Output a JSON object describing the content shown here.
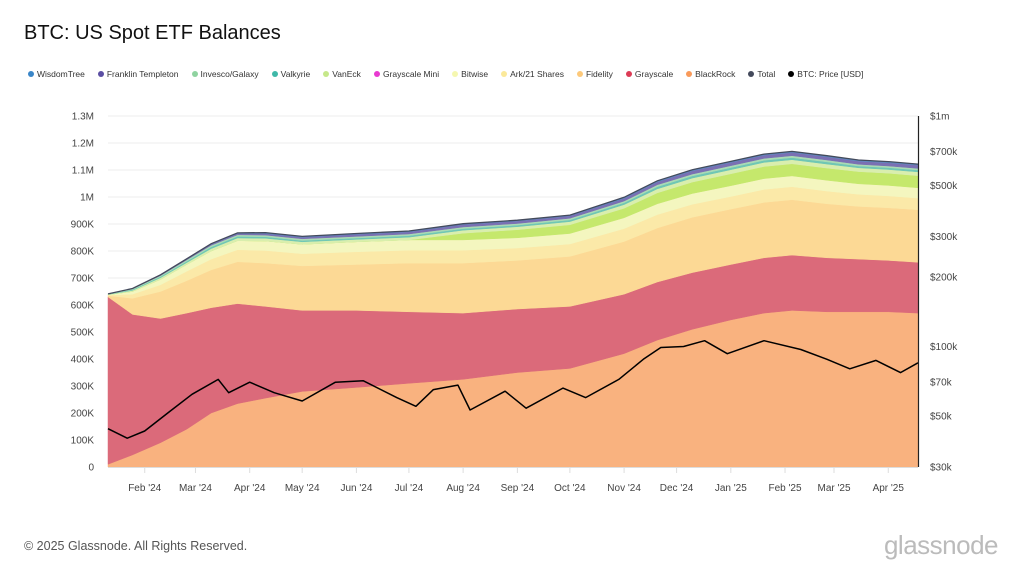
{
  "chart_data": {
    "type": "area",
    "title": "BTC: US Spot ETF Balances",
    "stacked": true,
    "x_range": [
      "2024-01-11",
      "2025-04-18"
    ],
    "x_tick_labels": [
      "Feb '24",
      "Mar '24",
      "Apr '24",
      "May '24",
      "Jun '24",
      "Jul '24",
      "Aug '24",
      "Sep '24",
      "Oct '24",
      "Nov '24",
      "Dec '24",
      "Jan '25",
      "Feb '25",
      "Mar '25",
      "Apr '25"
    ],
    "x_tick_dates": [
      "2024-02-01",
      "2024-03-01",
      "2024-04-01",
      "2024-05-01",
      "2024-06-01",
      "2024-07-01",
      "2024-08-01",
      "2024-09-01",
      "2024-10-01",
      "2024-11-01",
      "2024-12-01",
      "2025-01-01",
      "2025-02-01",
      "2025-03-01",
      "2025-04-01"
    ],
    "y_left": {
      "min": 0,
      "max": 1300000,
      "ticks": [
        0,
        100000,
        200000,
        300000,
        400000,
        500000,
        600000,
        700000,
        800000,
        900000,
        1000000,
        1100000,
        1200000,
        1300000
      ],
      "tick_labels": [
        "0",
        "100K",
        "200K",
        "300K",
        "400K",
        "500K",
        "600K",
        "700K",
        "800K",
        "900K",
        "1M",
        "1.1M",
        "1.2M",
        "1.3M"
      ]
    },
    "y_right": {
      "scale": "log",
      "min": 30000,
      "max": 1000000,
      "ticks": [
        30000,
        50000,
        70000,
        100000,
        200000,
        300000,
        500000,
        700000,
        1000000
      ],
      "tick_labels": [
        "$30k",
        "$50k",
        "$70k",
        "$100k",
        "$200k",
        "$300k",
        "$500k",
        "$700k",
        "$1m"
      ]
    },
    "grid": true,
    "legend_position": "top-left",
    "legend": [
      {
        "name": "WisdomTree",
        "color": "#3a86c8"
      },
      {
        "name": "Franklin Templeton",
        "color": "#5b4ea3"
      },
      {
        "name": "Invesco/Galaxy",
        "color": "#8fd3a0"
      },
      {
        "name": "Valkyrie",
        "color": "#3fb8a8"
      },
      {
        "name": "VanEck",
        "color": "#c6e88a"
      },
      {
        "name": "Grayscale Mini",
        "color": "#e83ad0"
      },
      {
        "name": "Bitwise",
        "color": "#f5f7b0"
      },
      {
        "name": "Ark/21 Shares",
        "color": "#fbe99a"
      },
      {
        "name": "Fidelity",
        "color": "#fdc97a"
      },
      {
        "name": "Grayscale",
        "color": "#dc3b55"
      },
      {
        "name": "BlackRock",
        "color": "#f99a5a"
      },
      {
        "name": "Total",
        "color": "#444a5c"
      },
      {
        "name": "BTC: Price [USD]",
        "color": "#000000"
      }
    ],
    "dates": [
      "2024-01-11",
      "2024-01-25",
      "2024-02-10",
      "2024-02-25",
      "2024-03-10",
      "2024-03-25",
      "2024-04-10",
      "2024-05-01",
      "2024-06-01",
      "2024-07-01",
      "2024-08-01",
      "2024-09-01",
      "2024-10-01",
      "2024-11-01",
      "2024-11-20",
      "2024-12-10",
      "2025-01-01",
      "2025-01-20",
      "2025-02-05",
      "2025-02-25",
      "2025-03-15",
      "2025-04-01",
      "2025-04-18"
    ],
    "series": [
      {
        "name": "BlackRock",
        "fill": "#f9b27f",
        "values": [
          10000,
          45000,
          90000,
          140000,
          200000,
          235000,
          255000,
          280000,
          295000,
          310000,
          325000,
          350000,
          365000,
          420000,
          470000,
          510000,
          545000,
          570000,
          580000,
          575000,
          575000,
          575000,
          570000
        ]
      },
      {
        "name": "Grayscale",
        "fill": "#db6a7a",
        "values": [
          620000,
          520000,
          460000,
          430000,
          390000,
          370000,
          340000,
          300000,
          285000,
          265000,
          245000,
          235000,
          230000,
          220000,
          215000,
          210000,
          205000,
          205000,
          205000,
          200000,
          195000,
          190000,
          188000
        ]
      },
      {
        "name": "Fidelity",
        "fill": "#fcd995",
        "values": [
          5000,
          60000,
          100000,
          120000,
          140000,
          155000,
          160000,
          165000,
          170000,
          180000,
          185000,
          180000,
          185000,
          195000,
          200000,
          205000,
          205000,
          205000,
          205000,
          200000,
          195000,
          195000,
          195000
        ]
      },
      {
        "name": "Ark/21 Shares",
        "fill": "#fbe9a8",
        "values": [
          2000,
          15000,
          25000,
          35000,
          40000,
          45000,
          47000,
          45000,
          47000,
          48000,
          48000,
          46000,
          46000,
          48000,
          50000,
          48000,
          47000,
          48000,
          48000,
          47000,
          45000,
          44000,
          43000
        ]
      },
      {
        "name": "Bitwise",
        "fill": "#f4f6bf",
        "values": [
          1000,
          10000,
          20000,
          25000,
          30000,
          33000,
          35000,
          35000,
          37000,
          38000,
          38000,
          38000,
          39000,
          40000,
          40000,
          40000,
          40000,
          40000,
          40000,
          40000,
          39000,
          39000,
          38000
        ]
      },
      {
        "name": "Grayscale Mini",
        "fill": "#c5e86c",
        "values": [
          0,
          0,
          0,
          0,
          0,
          0,
          0,
          0,
          0,
          0,
          25000,
          30000,
          32000,
          35000,
          40000,
          42000,
          44000,
          45000,
          45000,
          45000,
          45000,
          45000,
          45000
        ]
      },
      {
        "name": "VanEck",
        "fill": "#d9eeae",
        "values": [
          1000,
          4000,
          6000,
          7000,
          9000,
          10000,
          10000,
          9000,
          9000,
          10000,
          11000,
          11000,
          12000,
          14000,
          15000,
          15000,
          15000,
          15000,
          15000,
          15000,
          14000,
          14000,
          14000
        ]
      },
      {
        "name": "Valkyrie",
        "fill": "#6fc7b5",
        "values": [
          1000,
          3000,
          4000,
          5000,
          6000,
          6000,
          6000,
          5000,
          5000,
          6000,
          6000,
          6000,
          6000,
          7000,
          8000,
          8000,
          8000,
          8000,
          8000,
          8000,
          7000,
          7000,
          7000
        ]
      },
      {
        "name": "Invesco/Galaxy",
        "fill": "#a9dbb4",
        "values": [
          1000,
          3000,
          4000,
          5000,
          6000,
          6000,
          6000,
          6000,
          6000,
          6000,
          6000,
          6000,
          6000,
          6000,
          7000,
          7000,
          7000,
          7000,
          7000,
          7000,
          6000,
          6000,
          6000
        ]
      },
      {
        "name": "Franklin Templeton",
        "fill": "#7a70b3",
        "values": [
          0,
          1000,
          2000,
          3000,
          4000,
          5000,
          6000,
          6000,
          8000,
          8000,
          9000,
          9000,
          9000,
          10000,
          11000,
          12000,
          12000,
          12000,
          12000,
          12000,
          12000,
          12000,
          12000
        ]
      },
      {
        "name": "WisdomTree",
        "fill": "#5a8fc4",
        "values": [
          0,
          0,
          1000,
          1000,
          2000,
          2000,
          3000,
          3000,
          3000,
          3000,
          3000,
          3000,
          3000,
          4000,
          4000,
          4000,
          4000,
          4000,
          4000,
          4000,
          4000,
          4000,
          4000
        ]
      }
    ],
    "price": {
      "name": "BTC: Price [USD]",
      "dates": [
        "2024-01-11",
        "2024-01-22",
        "2024-02-01",
        "2024-02-15",
        "2024-02-28",
        "2024-03-14",
        "2024-03-20",
        "2024-04-01",
        "2024-04-15",
        "2024-05-01",
        "2024-05-20",
        "2024-06-05",
        "2024-06-24",
        "2024-07-05",
        "2024-07-15",
        "2024-07-29",
        "2024-08-05",
        "2024-08-25",
        "2024-09-06",
        "2024-09-27",
        "2024-10-10",
        "2024-10-29",
        "2024-11-12",
        "2024-11-22",
        "2024-12-05",
        "2024-12-17",
        "2024-12-30",
        "2025-01-20",
        "2025-02-10",
        "2025-02-25",
        "2025-03-10",
        "2025-03-25",
        "2025-04-08",
        "2025-04-18"
      ],
      "values": [
        44000,
        40000,
        43000,
        52000,
        62000,
        72000,
        63000,
        70000,
        63000,
        58000,
        70000,
        71000,
        60000,
        55000,
        65000,
        68000,
        53000,
        64000,
        54000,
        66000,
        60000,
        72000,
        88000,
        99000,
        100000,
        106000,
        93000,
        106000,
        97000,
        88000,
        80000,
        87000,
        77000,
        85000
      ]
    }
  },
  "footer": {
    "copyright": "© 2025 Glassnode. All Rights Reserved.",
    "logo": "glassnode"
  },
  "watermark": "glassnode"
}
